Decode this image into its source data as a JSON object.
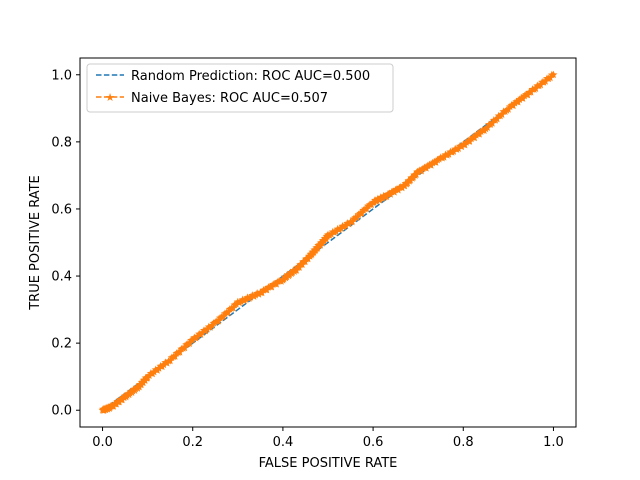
{
  "chart_data": {
    "type": "line",
    "xlabel": "FALSE POSITIVE RATE",
    "ylabel": "TRUE POSITIVE RATE",
    "xlim": [
      -0.05,
      1.05
    ],
    "ylim": [
      -0.05,
      1.05
    ],
    "x_ticks": [
      0.0,
      0.2,
      0.4,
      0.6,
      0.8,
      1.0
    ],
    "x_tick_labels": [
      "0.0",
      "0.2",
      "0.4",
      "0.6",
      "0.8",
      "1.0"
    ],
    "y_ticks": [
      0.0,
      0.2,
      0.4,
      0.6,
      0.8,
      1.0
    ],
    "y_tick_labels": [
      "0.0",
      "0.2",
      "0.4",
      "0.6",
      "0.8",
      "1.0"
    ],
    "grid": false,
    "legend_position": "upper-left",
    "series": [
      {
        "name": "Random Prediction: ROC AUC=0.500",
        "color": "#1f77b4",
        "style": "dashed",
        "marker": "none",
        "x": [
          0.0,
          1.0
        ],
        "y": [
          0.0,
          1.0
        ]
      },
      {
        "name": "Naive Bayes: ROC AUC=0.507",
        "color": "#ff7f0e",
        "style": "dashed",
        "marker": "star",
        "x": [
          0.0,
          0.02,
          0.05,
          0.08,
          0.1,
          0.15,
          0.2,
          0.25,
          0.3,
          0.35,
          0.4,
          0.43,
          0.46,
          0.48,
          0.5,
          0.55,
          0.6,
          0.63,
          0.67,
          0.7,
          0.75,
          0.8,
          0.85,
          0.9,
          0.95,
          1.0
        ],
        "y": [
          0.0,
          0.01,
          0.04,
          0.07,
          0.1,
          0.15,
          0.21,
          0.26,
          0.32,
          0.35,
          0.39,
          0.42,
          0.46,
          0.49,
          0.52,
          0.56,
          0.62,
          0.64,
          0.67,
          0.71,
          0.75,
          0.79,
          0.84,
          0.9,
          0.95,
          1.0
        ]
      }
    ]
  }
}
